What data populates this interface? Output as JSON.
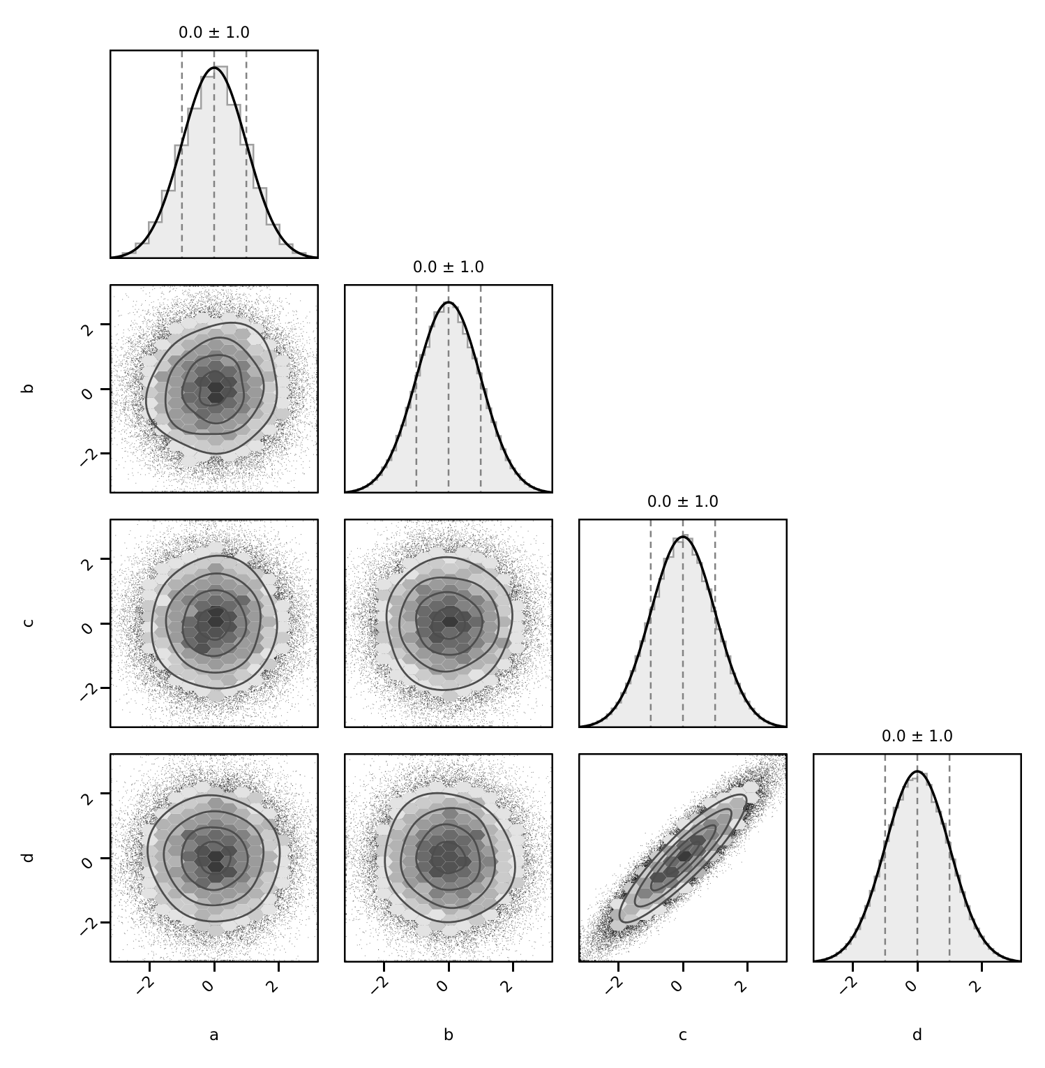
{
  "figure": {
    "background": "#ffffff",
    "kind_label": "corner pair plot of posterior samples"
  },
  "chart_data": {
    "type": "scatter",
    "plot_kind": "corner_pair_plot",
    "variables": [
      "a",
      "b",
      "c",
      "d"
    ],
    "axes": {
      "range": [
        -3.25,
        3.25
      ],
      "tick_values": [
        -2,
        0,
        2
      ],
      "tick_labels": [
        "−2",
        "0",
        "2"
      ],
      "tick_rotation_deg": 45,
      "x_axis_labels": [
        "a",
        "b",
        "c",
        "d"
      ],
      "y_axis_labels": [
        "b",
        "c",
        "d"
      ],
      "grid": false,
      "legend": false
    },
    "diagonal_titles": [
      "0.0 ± 1.0",
      "0.0 ± 1.0",
      "0.0 ± 1.0",
      "0.0 ± 1.0"
    ],
    "quantile_lines": [
      -1.0,
      0.0,
      1.0
    ],
    "contour_sigma_levels": [
      0.5,
      1.0,
      1.5,
      2.0
    ],
    "panels": [
      {
        "row": 0,
        "col": 0,
        "kind": "histogram",
        "var": "a",
        "title": "0.0 ± 1.0",
        "mean": 0.0,
        "sigma": 1.0,
        "bins": 16
      },
      {
        "row": 1,
        "col": 0,
        "kind": "density2d",
        "x_var": "a",
        "y_var": "b",
        "correlation": 0.0,
        "irregularity": 2.0
      },
      {
        "row": 1,
        "col": 1,
        "kind": "histogram",
        "var": "b",
        "title": "0.0 ± 1.0",
        "mean": 0.0,
        "sigma": 1.0,
        "bins": 44
      },
      {
        "row": 2,
        "col": 0,
        "kind": "density2d",
        "x_var": "a",
        "y_var": "c",
        "correlation": 0.0,
        "irregularity": 1.0
      },
      {
        "row": 2,
        "col": 1,
        "kind": "density2d",
        "x_var": "b",
        "y_var": "c",
        "correlation": 0.0,
        "irregularity": 1.1
      },
      {
        "row": 2,
        "col": 2,
        "kind": "histogram",
        "var": "c",
        "title": "0.0 ± 1.0",
        "mean": 0.0,
        "sigma": 1.0,
        "bins": 44
      },
      {
        "row": 3,
        "col": 0,
        "kind": "density2d",
        "x_var": "a",
        "y_var": "d",
        "correlation": 0.0,
        "irregularity": 1.0
      },
      {
        "row": 3,
        "col": 1,
        "kind": "density2d",
        "x_var": "b",
        "y_var": "d",
        "correlation": 0.0,
        "irregularity": 1.2
      },
      {
        "row": 3,
        "col": 2,
        "kind": "density2d",
        "x_var": "c",
        "y_var": "d",
        "correlation": 0.9,
        "irregularity": 0.45
      },
      {
        "row": 3,
        "col": 3,
        "kind": "histogram",
        "var": "d",
        "title": "0.0 ± 1.0",
        "mean": 0.0,
        "sigma": 1.0,
        "bins": 44
      }
    ],
    "colors": {
      "background": "#ffffff",
      "text": "#000000",
      "panel_border": "#000000",
      "histogram_fill": "#ececec",
      "histogram_edge": "#a0a0a0",
      "density_curve": "#000000",
      "quantile_dash": "#828282",
      "contour_line": "#4d4d4d",
      "scatter_points": "#000000",
      "fill_innermost": "#3a3a3a",
      "fill_outermost": "#e3e3e3",
      "tick": "#000000"
    }
  }
}
